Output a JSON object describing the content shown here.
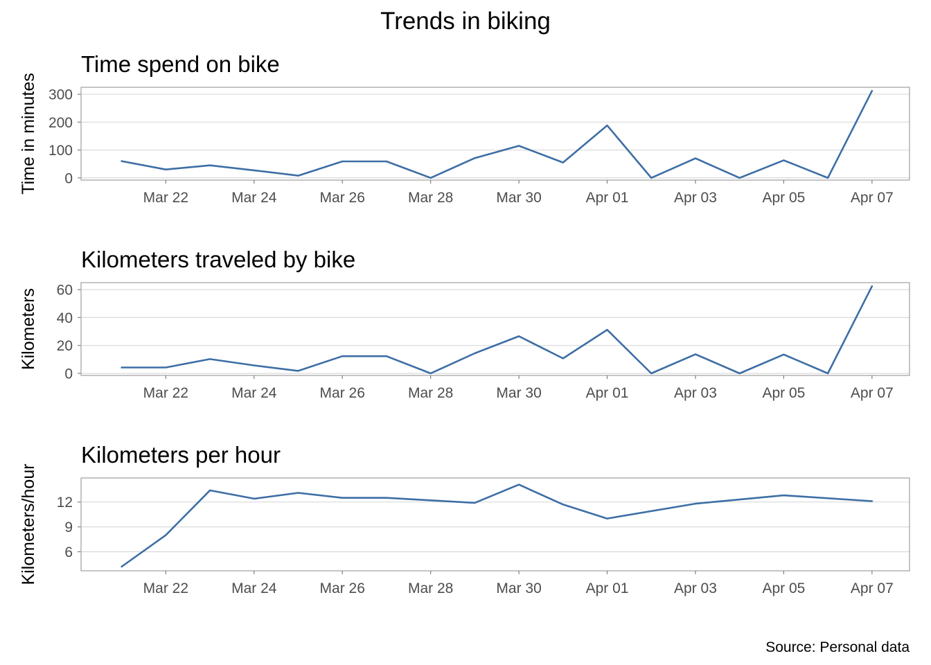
{
  "title": "Trends in biking",
  "caption": "Source: Personal data",
  "colors": {
    "line": "#3d6ea5",
    "grid": "#d9d9d9",
    "frame": "#a6a6a6",
    "tick_text": "#4d4d4d"
  },
  "chart_data": [
    {
      "type": "line",
      "title": "Time spend on bike",
      "xlabel": "",
      "ylabel": "Time in minutes",
      "x": [
        "2020-03-21",
        "2020-03-22",
        "2020-03-23",
        "2020-03-24",
        "2020-03-25",
        "2020-03-26",
        "2020-03-27",
        "2020-03-28",
        "2020-03-29",
        "2020-03-30",
        "2020-03-31",
        "2020-04-01",
        "2020-04-02",
        "2020-04-03",
        "2020-04-04",
        "2020-04-05",
        "2020-04-06",
        "2020-04-07"
      ],
      "series": [
        {
          "values": [
            60,
            30,
            45,
            27,
            8,
            59,
            59,
            0,
            71,
            115,
            55,
            188,
            0,
            70,
            0,
            63,
            0,
            312
          ]
        }
      ],
      "xticks": [
        "Mar 22",
        "Mar 24",
        "Mar 26",
        "Mar 28",
        "Mar 30",
        "Apr 01",
        "Apr 03",
        "Apr 05",
        "Apr 07"
      ],
      "yticks": [
        0,
        100,
        200,
        300
      ],
      "ylim": [
        -8,
        325
      ],
      "grid": true
    },
    {
      "type": "line",
      "title": "Kilometers traveled by bike",
      "xlabel": "",
      "ylabel": "Kilometers",
      "x": [
        "2020-03-21",
        "2020-03-22",
        "2020-03-23",
        "2020-03-24",
        "2020-03-25",
        "2020-03-26",
        "2020-03-27",
        "2020-03-28",
        "2020-03-29",
        "2020-03-30",
        "2020-03-31",
        "2020-04-01",
        "2020-04-02",
        "2020-04-03",
        "2020-04-04",
        "2020-04-05",
        "2020-04-06",
        "2020-04-07"
      ],
      "series": [
        {
          "values": [
            4.2,
            4.2,
            10.2,
            5.7,
            1.8,
            12.3,
            12.3,
            0,
            14.4,
            26.6,
            10.7,
            31.2,
            0,
            13.7,
            0,
            13.5,
            0,
            62.4
          ]
        }
      ],
      "xticks": [
        "Mar 22",
        "Mar 24",
        "Mar 26",
        "Mar 28",
        "Mar 30",
        "Apr 01",
        "Apr 03",
        "Apr 05",
        "Apr 07"
      ],
      "yticks": [
        0,
        20,
        40,
        60
      ],
      "ylim": [
        -1.5,
        65
      ],
      "grid": true
    },
    {
      "type": "line",
      "title": "Kilometers per hour",
      "xlabel": "",
      "ylabel": "Kilometers/hour",
      "x": [
        "2020-03-21",
        "2020-03-22",
        "2020-03-23",
        "2020-03-24",
        "2020-03-25",
        "2020-03-26",
        "2020-03-27",
        "2020-03-28",
        "2020-03-29",
        "2020-03-30",
        "2020-03-31",
        "2020-04-01",
        "2020-04-03",
        "2020-04-05",
        "2020-04-07"
      ],
      "series": [
        {
          "values": [
            4.2,
            8.0,
            13.4,
            12.4,
            13.1,
            12.5,
            12.5,
            12.2,
            11.9,
            14.1,
            11.7,
            10.0,
            11.8,
            12.8,
            12.1
          ]
        }
      ],
      "xticks": [
        "Mar 22",
        "Mar 24",
        "Mar 26",
        "Mar 28",
        "Mar 30",
        "Apr 01",
        "Apr 03",
        "Apr 05",
        "Apr 07"
      ],
      "yticks": [
        6,
        9,
        12
      ],
      "ylim": [
        3.7,
        14.9
      ],
      "grid": true
    }
  ]
}
